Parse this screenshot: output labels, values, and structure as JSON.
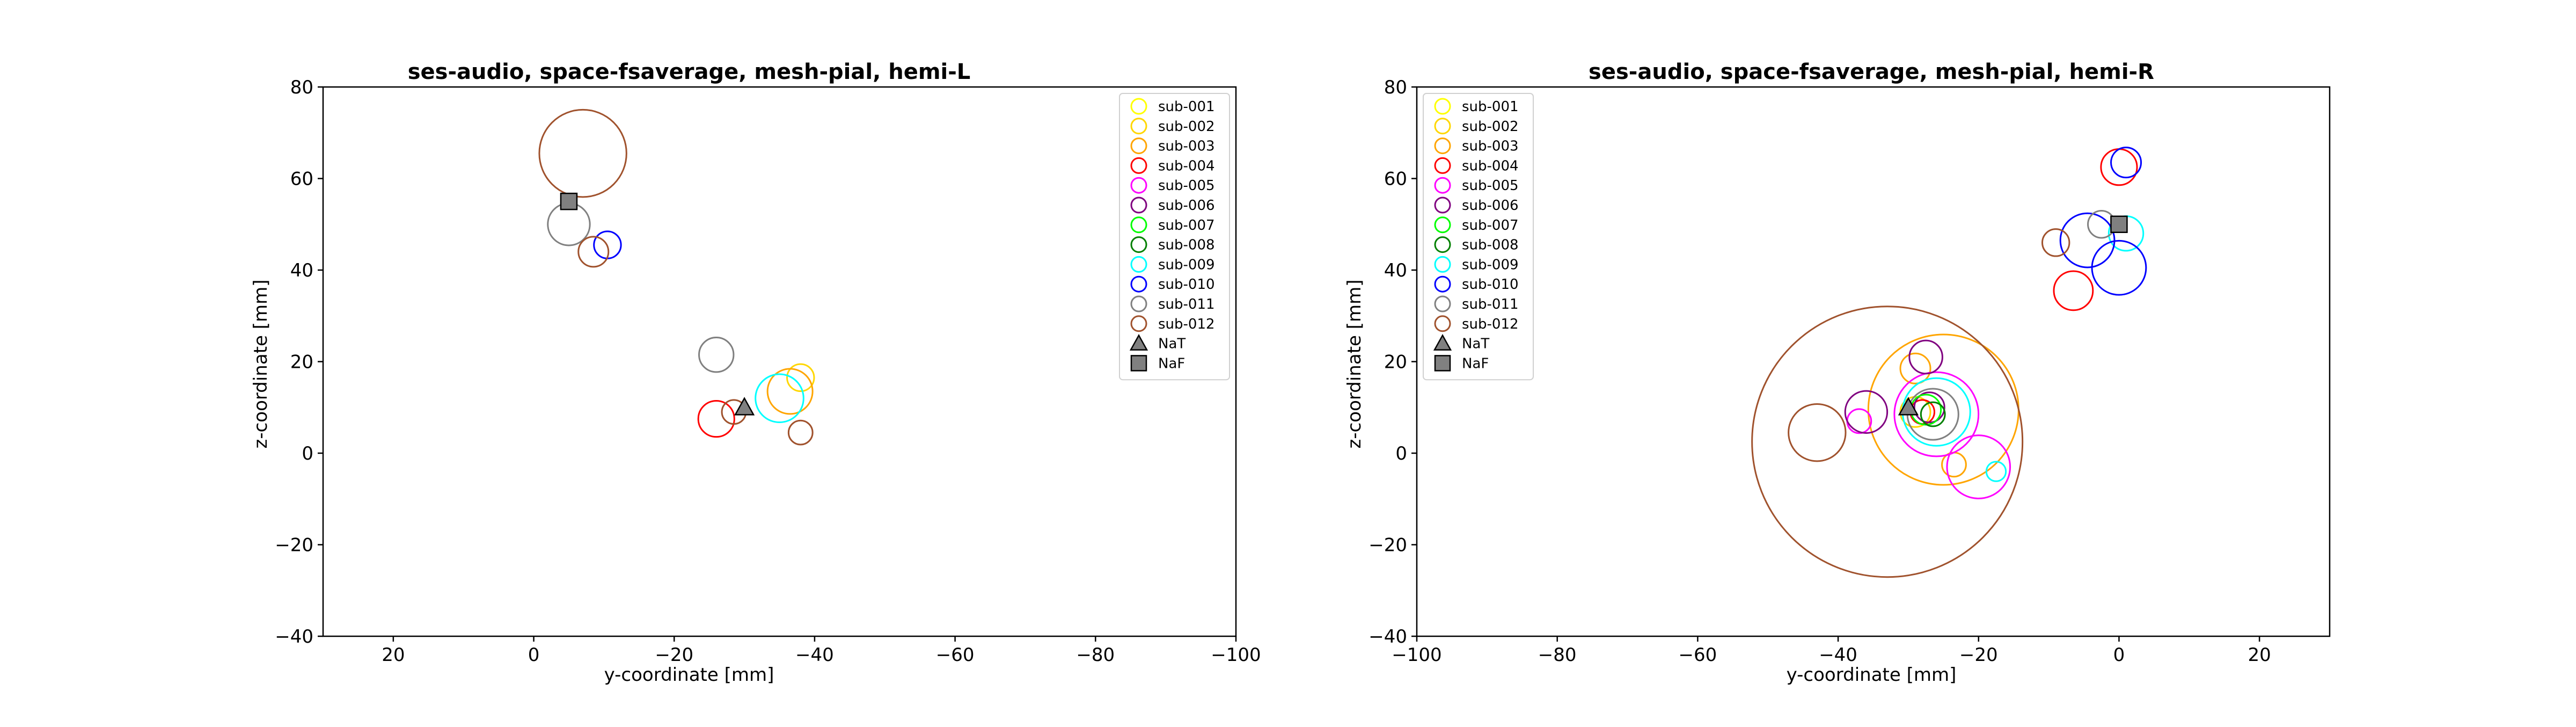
{
  "chart_data": [
    {
      "type": "scatter",
      "title": "ses-audio, space-fsaverage, mesh-pial, hemi-L",
      "xlabel": "y-coordinate [mm]",
      "ylabel": "z-coordinate [mm]",
      "xlim": [
        30,
        -100
      ],
      "ylim": [
        -40,
        80
      ],
      "xticks": [
        "20",
        "0",
        "−20",
        "−40",
        "−60",
        "−80",
        "−100"
      ],
      "xtick_values": [
        20,
        0,
        -20,
        -40,
        -60,
        -80,
        -100
      ],
      "yticks": [
        "80",
        "60",
        "40",
        "20",
        "0",
        "−20",
        "−40"
      ],
      "ytick_values": [
        80,
        60,
        40,
        20,
        0,
        -20,
        -40
      ],
      "grid": false,
      "legend_position": "upper right",
      "legend": [
        "sub-001",
        "sub-002",
        "sub-003",
        "sub-004",
        "sub-005",
        "sub-006",
        "sub-007",
        "sub-008",
        "sub-009",
        "sub-010",
        "sub-011",
        "sub-012",
        "NaT",
        "NaF"
      ],
      "series": [
        {
          "name": "sub-001",
          "color": "#ffff00",
          "points": []
        },
        {
          "name": "sub-002",
          "color": "#ffd700",
          "points": [
            {
              "x": -38,
              "y": 16.5,
              "size": 1.8
            }
          ]
        },
        {
          "name": "sub-003",
          "color": "#ffa500",
          "points": [
            {
              "x": -36.5,
              "y": 13.5,
              "size": 3
            }
          ]
        },
        {
          "name": "sub-004",
          "color": "#ff0000",
          "points": [
            {
              "x": -26,
              "y": 7.5,
              "size": 2.4
            }
          ]
        },
        {
          "name": "sub-005",
          "color": "#ff00ff",
          "points": []
        },
        {
          "name": "sub-006",
          "color": "#800080",
          "points": []
        },
        {
          "name": "sub-007",
          "color": "#00ff00",
          "points": []
        },
        {
          "name": "sub-008",
          "color": "#008000",
          "points": []
        },
        {
          "name": "sub-009",
          "color": "#00ffff",
          "points": [
            {
              "x": -35,
              "y": 12,
              "size": 3.2
            }
          ]
        },
        {
          "name": "sub-010",
          "color": "#0000ff",
          "points": [
            {
              "x": -10.5,
              "y": 45.5,
              "size": 1.8
            }
          ]
        },
        {
          "name": "sub-011",
          "color": "#808080",
          "points": [
            {
              "x": -5,
              "y": 50,
              "size": 2.8
            },
            {
              "x": -26,
              "y": 21.5,
              "size": 2.3
            }
          ]
        },
        {
          "name": "sub-012",
          "color": "#a0522d",
          "points": [
            {
              "x": -7,
              "y": 65.5,
              "size": 5.8
            },
            {
              "x": -8.5,
              "y": 44,
              "size": 2
            },
            {
              "x": -28.5,
              "y": 9,
              "size": 1.6
            },
            {
              "x": -38,
              "y": 4.5,
              "size": 1.6
            }
          ]
        }
      ],
      "markers": [
        {
          "name": "NaT",
          "shape": "triangle",
          "color": "#808080",
          "x": -30,
          "y": 10
        },
        {
          "name": "NaF",
          "shape": "square",
          "color": "#808080",
          "x": -5,
          "y": 55
        }
      ]
    },
    {
      "type": "scatter",
      "title": "ses-audio, space-fsaverage, mesh-pial, hemi-R",
      "xlabel": "y-coordinate [mm]",
      "ylabel": "z-coordinate [mm]",
      "xlim": [
        -100,
        30
      ],
      "ylim": [
        -40,
        80
      ],
      "xticks": [
        "−100",
        "−80",
        "−60",
        "−40",
        "−20",
        "0",
        "20"
      ],
      "xtick_values": [
        -100,
        -80,
        -60,
        -40,
        -20,
        0,
        20
      ],
      "yticks": [
        "80",
        "60",
        "40",
        "20",
        "0",
        "−20",
        "−40"
      ],
      "ytick_values": [
        80,
        60,
        40,
        20,
        0,
        -20,
        -40
      ],
      "grid": false,
      "legend_position": "upper left",
      "legend": [
        "sub-001",
        "sub-002",
        "sub-003",
        "sub-004",
        "sub-005",
        "sub-006",
        "sub-007",
        "sub-008",
        "sub-009",
        "sub-010",
        "sub-011",
        "sub-012",
        "NaT",
        "NaF"
      ],
      "series": [
        {
          "name": "sub-001",
          "color": "#ffff00",
          "points": []
        },
        {
          "name": "sub-002",
          "color": "#ffd700",
          "points": [
            {
              "x": -29,
              "y": 9,
              "size": 2
            }
          ]
        },
        {
          "name": "sub-003",
          "color": "#ffa500",
          "points": [
            {
              "x": -29,
              "y": 18.5,
              "size": 2
            },
            {
              "x": -25,
              "y": 9.5,
              "size": 10
            },
            {
              "x": -23.5,
              "y": -2.5,
              "size": 1.6
            }
          ]
        },
        {
          "name": "sub-004",
          "color": "#ff0000",
          "points": [
            {
              "x": -6.5,
              "y": 35.5,
              "size": 2.6
            },
            {
              "x": 0,
              "y": 62.5,
              "size": 2.4
            },
            {
              "x": -28,
              "y": 9,
              "size": 1.6
            }
          ]
        },
        {
          "name": "sub-005",
          "color": "#ff00ff",
          "points": [
            {
              "x": -20,
              "y": -3,
              "size": 4.2
            },
            {
              "x": -26,
              "y": 8.5,
              "size": 5.6
            },
            {
              "x": -37,
              "y": 7,
              "size": 1.6
            }
          ]
        },
        {
          "name": "sub-006",
          "color": "#800080",
          "points": [
            {
              "x": -36,
              "y": 9,
              "size": 2.8
            },
            {
              "x": -27.5,
              "y": 21,
              "size": 2.2
            },
            {
              "x": -27,
              "y": 10,
              "size": 2
            }
          ]
        },
        {
          "name": "sub-007",
          "color": "#00ff00",
          "points": [
            {
              "x": -27.5,
              "y": 9.5,
              "size": 2
            }
          ]
        },
        {
          "name": "sub-008",
          "color": "#008000",
          "points": [
            {
              "x": -26.5,
              "y": 8.5,
              "size": 1.6
            }
          ]
        },
        {
          "name": "sub-009",
          "color": "#00ffff",
          "points": [
            {
              "x": 1,
              "y": 48,
              "size": 2.3
            },
            {
              "x": -26,
              "y": 9,
              "size": 4.5
            },
            {
              "x": -17.5,
              "y": -4,
              "size": 1.3
            }
          ]
        },
        {
          "name": "sub-010",
          "color": "#0000ff",
          "points": [
            {
              "x": -4.5,
              "y": 46.5,
              "size": 3.6
            },
            {
              "x": 0,
              "y": 40.5,
              "size": 3.6
            },
            {
              "x": 1,
              "y": 63.5,
              "size": 2
            }
          ]
        },
        {
          "name": "sub-011",
          "color": "#808080",
          "points": [
            {
              "x": -2.5,
              "y": 50,
              "size": 1.8
            },
            {
              "x": -26.5,
              "y": 8.5,
              "size": 3.4
            }
          ]
        },
        {
          "name": "sub-012",
          "color": "#a0522d",
          "points": [
            {
              "x": -33,
              "y": 2.5,
              "size": 18
            },
            {
              "x": -43,
              "y": 4.5,
              "size": 3.8
            },
            {
              "x": -9,
              "y": 46,
              "size": 1.8
            }
          ]
        }
      ],
      "markers": [
        {
          "name": "NaT",
          "shape": "triangle",
          "color": "#808080",
          "x": -30,
          "y": 10
        },
        {
          "name": "NaF",
          "shape": "square",
          "color": "#808080",
          "x": 0,
          "y": 50
        }
      ]
    }
  ]
}
